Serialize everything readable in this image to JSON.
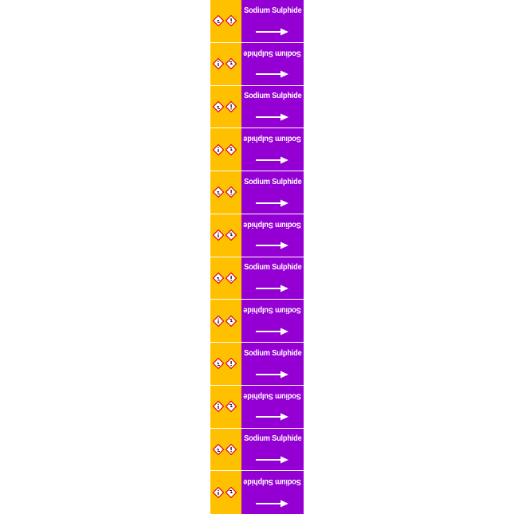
{
  "label": {
    "medium_name": "Sodium Sulphide",
    "hazard_color": "#ffc000",
    "pipe_color": "#9400d3",
    "text_color": "#ffffff",
    "pictograms": [
      "corrosion-pictogram-icon",
      "exclamation-pictogram-icon"
    ],
    "flow_arrow": "arrow-right-icon"
  },
  "rows": [
    {
      "name": "Sodium Sulphide",
      "orientation": "upright"
    },
    {
      "name": "Sodium Sulphide",
      "orientation": "inverted"
    },
    {
      "name": "Sodium Sulphide",
      "orientation": "upright"
    },
    {
      "name": "Sodium Sulphide",
      "orientation": "inverted"
    },
    {
      "name": "Sodium Sulphide",
      "orientation": "upright"
    },
    {
      "name": "Sodium Sulphide",
      "orientation": "inverted"
    },
    {
      "name": "Sodium Sulphide",
      "orientation": "upright"
    },
    {
      "name": "Sodium Sulphide",
      "orientation": "inverted"
    },
    {
      "name": "Sodium Sulphide",
      "orientation": "upright"
    },
    {
      "name": "Sodium Sulphide",
      "orientation": "inverted"
    },
    {
      "name": "Sodium Sulphide",
      "orientation": "upright"
    },
    {
      "name": "Sodium Sulphide",
      "orientation": "inverted"
    }
  ]
}
